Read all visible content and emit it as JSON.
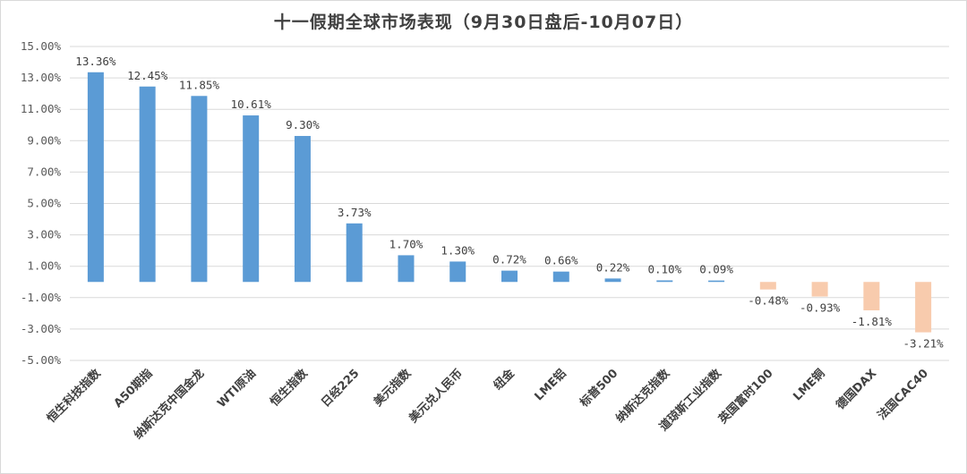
{
  "chart_data": {
    "type": "bar",
    "title": "十一假期全球市场表现（9月30日盘后-10月07日）",
    "categories": [
      "恒生科技指数",
      "A50期指",
      "纳斯达克中国金龙",
      "WTI原油",
      "恒生指数",
      "日经225",
      "美元指数",
      "美元兑人民币",
      "纽金",
      "LME铝",
      "标普500",
      "纳斯达克指数",
      "道琼斯工业指数",
      "英国富时100",
      "LME铜",
      "德国DAX",
      "法国CAC40"
    ],
    "values": [
      13.36,
      12.45,
      11.85,
      10.61,
      9.3,
      3.73,
      1.7,
      1.3,
      0.72,
      0.66,
      0.22,
      0.1,
      0.09,
      -0.48,
      -0.93,
      -1.81,
      -3.21
    ],
    "data_labels": [
      "13.36%",
      "12.45%",
      "11.85%",
      "10.61%",
      "9.30%",
      "3.73%",
      "1.70%",
      "1.30%",
      "0.72%",
      "0.66%",
      "0.22%",
      "0.10%",
      "0.09%",
      "-0.48%",
      "-0.93%",
      "-1.81%",
      "-3.21%"
    ],
    "y_ticks": [
      "15.00%",
      "13.00%",
      "11.00%",
      "9.00%",
      "7.00%",
      "5.00%",
      "3.00%",
      "1.00%",
      "-1.00%",
      "-3.00%",
      "-5.00%"
    ],
    "y_tick_values": [
      15,
      13,
      11,
      9,
      7,
      5,
      3,
      1,
      -1,
      -3,
      -5
    ],
    "ylim": [
      -5,
      15
    ],
    "xlabel": "",
    "ylabel": "",
    "grid": true,
    "legend": "none",
    "colors": {
      "positive": "#5b9bd5",
      "negative": "#f8cbad"
    }
  }
}
